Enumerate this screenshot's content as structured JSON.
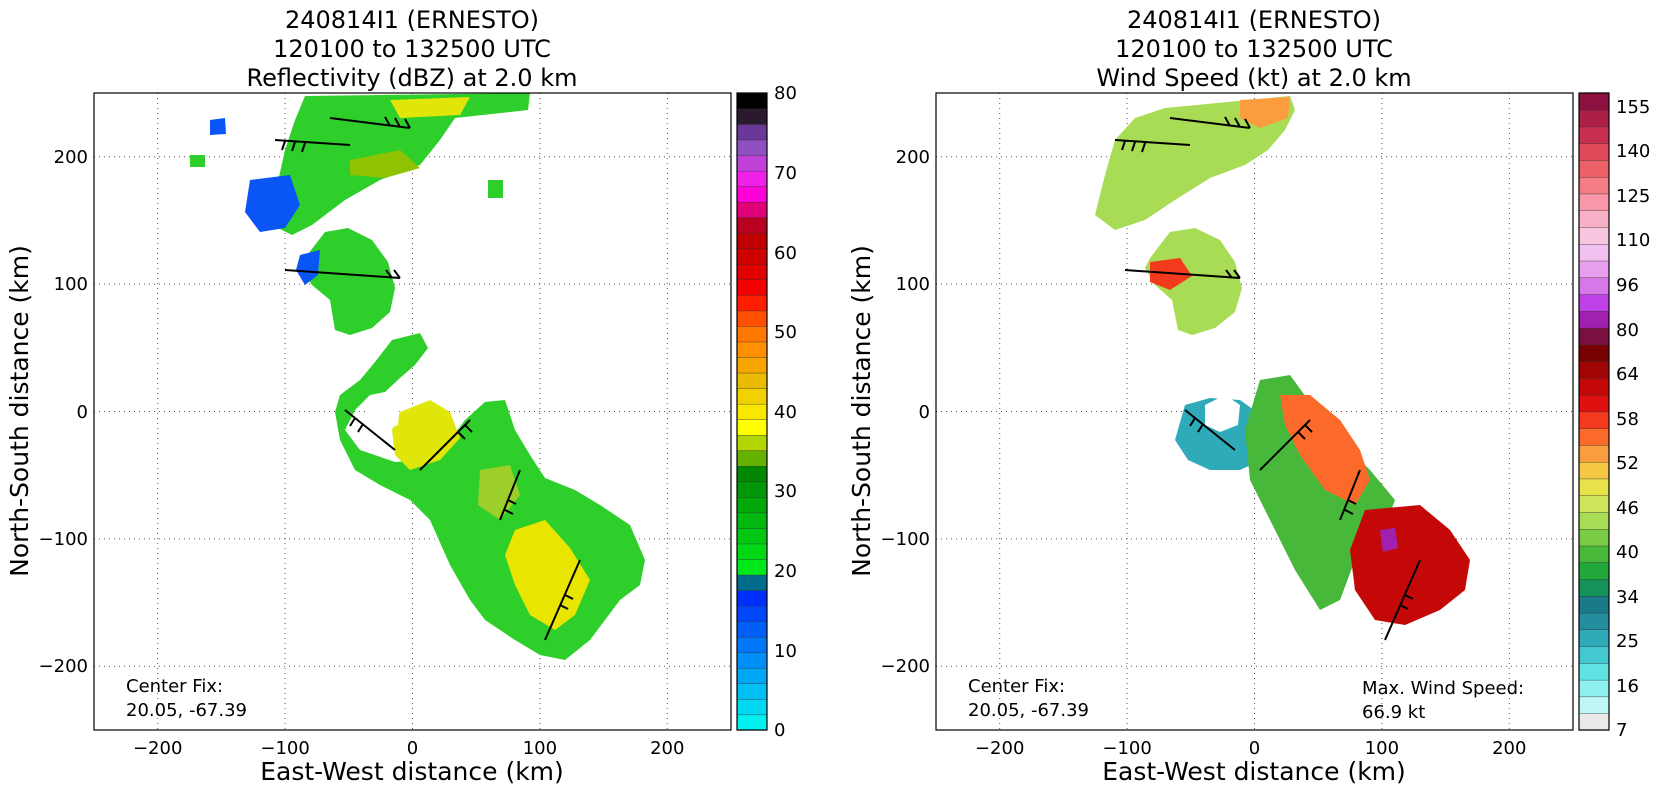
{
  "panels": [
    {
      "title_lines": [
        "240814I1 (ERNESTO)",
        "120100 to 132500 UTC",
        "Reflectivity (dBZ) at 2.0 km"
      ],
      "xlabel": "East-West distance (km)",
      "ylabel": "North-South distance (km)",
      "x_ticks": [
        "−200",
        "−100",
        "0",
        "100",
        "200"
      ],
      "y_ticks": [
        "200",
        "100",
        "0",
        "−100",
        "−200"
      ],
      "center_fix_label": "Center Fix:",
      "center_fix_value": "20.05, -67.39",
      "colorbar_labels": [
        "80",
        "70",
        "60",
        "50",
        "40",
        "30",
        "20",
        "10",
        "0"
      ],
      "colorbar_colors": [
        "#00efef",
        "#00d7f0",
        "#00bff2",
        "#00a7f4",
        "#008ff6",
        "#0077f8",
        "#005ff9",
        "#0047fb",
        "#002ffd",
        "#006e8a",
        "#00e81a",
        "#00d816",
        "#00c812",
        "#00b80e",
        "#00a80a",
        "#009806",
        "#008802",
        "#64b100",
        "#b2d600",
        "#ffff00",
        "#f8e800",
        "#f1d200",
        "#eabb00",
        "#f8a500",
        "#ff9000",
        "#ff7800",
        "#ff5000",
        "#ff1e00",
        "#f20000",
        "#e00000",
        "#cf0000",
        "#c00000",
        "#b80020",
        "#e00078",
        "#ff00d8",
        "#f020e8",
        "#c040d8",
        "#9050c0",
        "#6a3898",
        "#2b1a2e",
        "#000000"
      ]
    },
    {
      "title_lines": [
        "240814I1 (ERNESTO)",
        "120100 to 132500 UTC",
        "Wind Speed (kt) at 2.0 km"
      ],
      "xlabel": "East-West distance (km)",
      "ylabel": "North-South distance (km)",
      "x_ticks": [
        "−200",
        "−100",
        "0",
        "100",
        "200"
      ],
      "y_ticks": [
        "200",
        "100",
        "0",
        "−100",
        "−200"
      ],
      "center_fix_label": "Center Fix:",
      "center_fix_value": "20.05, -67.39",
      "max_wind_label": "Max. Wind Speed:",
      "max_wind_value": "66.9 kt",
      "colorbar_labels": [
        "155",
        "140",
        "125",
        "110",
        "96",
        "80",
        "64",
        "58",
        "52",
        "46",
        "40",
        "34",
        "25",
        "16",
        "7"
      ],
      "colorbar_colors": [
        "#eaeaea",
        "#bff5f5",
        "#8ef0ee",
        "#5fe2e2",
        "#43c8d0",
        "#2faab8",
        "#238e9e",
        "#1a7a88",
        "#15925a",
        "#22a83a",
        "#47b83a",
        "#7acb45",
        "#a8dc55",
        "#cfe55c",
        "#e8e24a",
        "#f6c846",
        "#fb9d3e",
        "#fb6a2a",
        "#f43a1c",
        "#e01010",
        "#c40808",
        "#a00404",
        "#780202",
        "#7a1040",
        "#a020b0",
        "#c040e8",
        "#d878e8",
        "#e8a0ee",
        "#f2c0ef",
        "#f8c6df",
        "#f8b0c6",
        "#f898aa",
        "#f47c84",
        "#ec6068",
        "#e04858",
        "#c83050",
        "#ac2048",
        "#8c1040"
      ]
    }
  ],
  "chart_data": [
    {
      "type": "heatmap",
      "title": "240814I1 (ERNESTO) 120100 to 132500 UTC Reflectivity (dBZ) at 2.0 km",
      "xlabel": "East-West distance (km)",
      "ylabel": "North-South distance (km)",
      "xlim": [
        -250,
        250
      ],
      "ylim": [
        -250,
        250
      ],
      "x_ticks": [
        -200,
        -100,
        0,
        100,
        200
      ],
      "y_ticks": [
        -200,
        -100,
        0,
        100,
        200
      ],
      "grid": true,
      "colorbar": {
        "label_values": [
          0,
          10,
          20,
          30,
          40,
          50,
          60,
          70,
          80
        ],
        "range": [
          0,
          80
        ],
        "units": "dBZ"
      },
      "annotations": [
        "Center Fix: 20.05, -67.39"
      ],
      "overlay": "wind barbs"
    },
    {
      "type": "heatmap",
      "title": "240814I1 (ERNESTO) 120100 to 132500 UTC Wind Speed (kt) at 2.0 km",
      "xlabel": "East-West distance (km)",
      "ylabel": "North-South distance (km)",
      "xlim": [
        -250,
        250
      ],
      "ylim": [
        -250,
        250
      ],
      "x_ticks": [
        -200,
        -100,
        0,
        100,
        200
      ],
      "y_ticks": [
        -200,
        -100,
        0,
        100,
        200
      ],
      "grid": true,
      "colorbar": {
        "label_values": [
          7,
          16,
          25,
          34,
          40,
          46,
          52,
          58,
          64,
          80,
          96,
          110,
          125,
          140,
          155
        ],
        "units": "kt"
      },
      "annotations": [
        "Center Fix: 20.05, -67.39",
        "Max. Wind Speed: 66.9 kt"
      ],
      "max_wind_kt": 66.9,
      "overlay": "wind barbs"
    }
  ]
}
